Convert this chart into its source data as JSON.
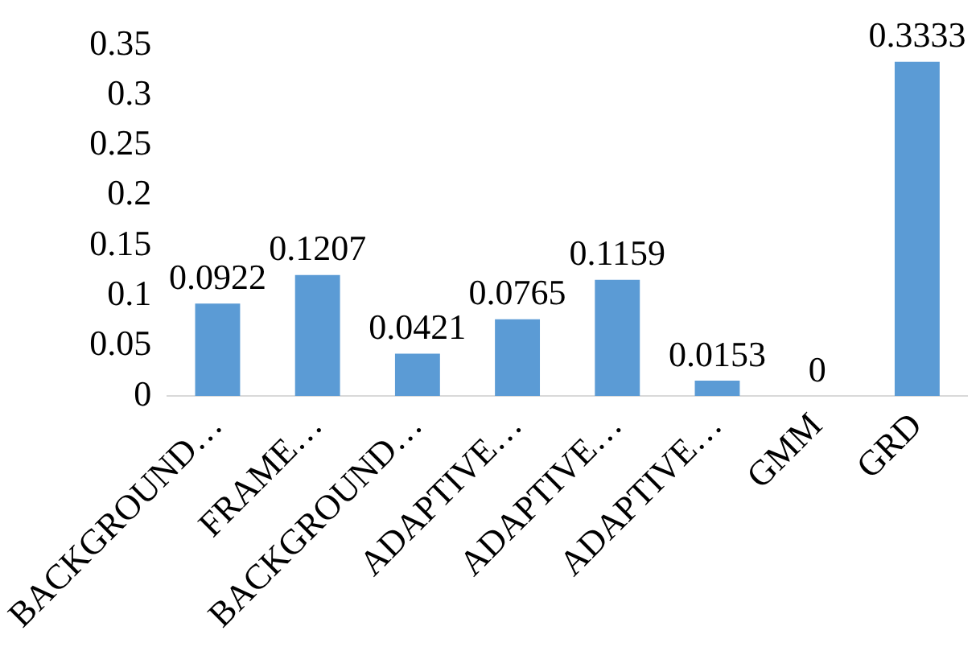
{
  "chart_data": {
    "type": "bar",
    "categories": [
      "BACKGROUND…",
      "FRAME…",
      "BACKGROUND…",
      "ADAPTIVE…",
      "ADAPTIVE…",
      "ADAPTIVE…",
      "GMM",
      "GRD"
    ],
    "values": [
      0.0922,
      0.1207,
      0.0421,
      0.0765,
      0.1159,
      0.0153,
      0,
      0.3333
    ],
    "color": "#5b9bd5",
    "ylim": [
      0,
      0.35
    ],
    "yticks": [
      0,
      0.05,
      0.1,
      0.15,
      0.2,
      0.25,
      0.3,
      0.35
    ],
    "grid": false,
    "legend": false,
    "data_labels": true
  }
}
